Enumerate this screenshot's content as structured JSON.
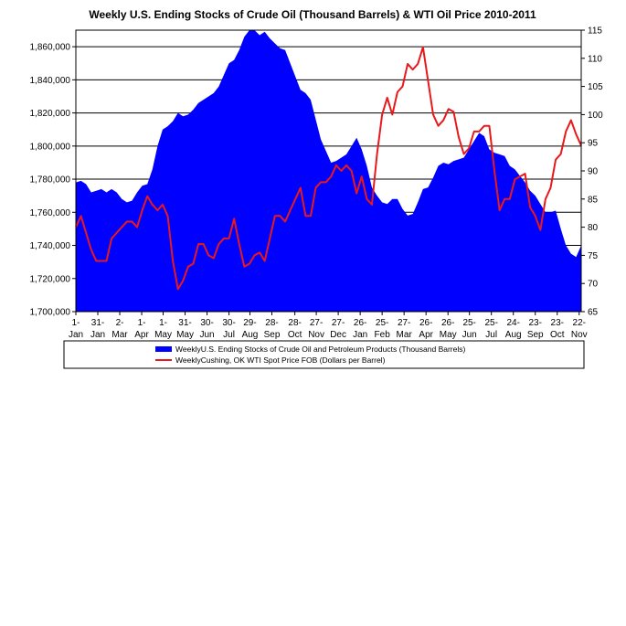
{
  "chart_data": {
    "type": "area",
    "title": "Weekly U.S. Ending Stocks of Crude Oil  (Thousand Barrels) & WTI Oil Price 2010-2011",
    "xlabel": "",
    "ylabel": "",
    "grid": "horizontal",
    "legend_position": "bottom",
    "y_left": {
      "range": [
        1700000,
        1870000
      ],
      "ticks": [
        "1,700,000",
        "1,720,000",
        "1,740,000",
        "1,760,000",
        "1,780,000",
        "1,800,000",
        "1,820,000",
        "1,840,000",
        "1,860,000"
      ],
      "tick_values": [
        1700000,
        1720000,
        1740000,
        1760000,
        1780000,
        1800000,
        1820000,
        1840000,
        1860000
      ]
    },
    "y_right": {
      "range": [
        65,
        115
      ],
      "ticks": [
        "65",
        "70",
        "75",
        "80",
        "85",
        "90",
        "95",
        "100",
        "105",
        "110",
        "115"
      ],
      "tick_values": [
        65,
        70,
        75,
        80,
        85,
        90,
        95,
        100,
        105,
        110,
        115
      ]
    },
    "x_ticks": [
      {
        "top": "1-",
        "bottom": "Jan",
        "week": 0
      },
      {
        "top": "31-",
        "bottom": "Jan",
        "week": 4.3
      },
      {
        "top": "2-",
        "bottom": "Mar",
        "week": 8.6
      },
      {
        "top": "1-",
        "bottom": "Apr",
        "week": 12.9
      },
      {
        "top": "1-",
        "bottom": "May",
        "week": 17.1
      },
      {
        "top": "31-",
        "bottom": "May",
        "week": 21.4
      },
      {
        "top": "30-",
        "bottom": "Jun",
        "week": 25.7
      },
      {
        "top": "30-",
        "bottom": "Jul",
        "week": 30.0
      },
      {
        "top": "29-",
        "bottom": "Aug",
        "week": 34.1
      },
      {
        "top": "28-",
        "bottom": "Sep",
        "week": 38.4
      },
      {
        "top": "28-",
        "bottom": "Oct",
        "week": 42.9
      },
      {
        "top": "27-",
        "bottom": "Nov",
        "week": 47.1
      },
      {
        "top": "27-",
        "bottom": "Dec",
        "week": 51.4
      },
      {
        "top": "26-",
        "bottom": "Jan",
        "week": 55.7
      },
      {
        "top": "25-",
        "bottom": "Feb",
        "week": 60.0
      },
      {
        "top": "27-",
        "bottom": "Mar",
        "week": 64.3
      },
      {
        "top": "26-",
        "bottom": "Apr",
        "week": 68.6
      },
      {
        "top": "26-",
        "bottom": "May",
        "week": 72.9
      },
      {
        "top": "25-",
        "bottom": "Jun",
        "week": 77.1
      },
      {
        "top": "25-",
        "bottom": "Jul",
        "week": 81.4
      },
      {
        "top": "24-",
        "bottom": "Aug",
        "week": 85.7
      },
      {
        "top": "23-",
        "bottom": "Sep",
        "week": 90.0
      },
      {
        "top": "23-",
        "bottom": "Oct",
        "week": 94.3
      },
      {
        "top": "22-",
        "bottom": "Nov",
        "week": 98.6
      }
    ],
    "x_range": [
      0,
      99
    ],
    "series": [
      {
        "name": "WeeklyU.S. Ending Stocks of Crude Oil and Petroleum Products  (Thousand Barrels)",
        "type": "area",
        "axis": "left",
        "color": "#0000ff",
        "x": [
          0,
          1,
          2,
          3,
          4,
          5,
          6,
          7,
          8,
          9,
          10,
          11,
          12,
          13,
          14,
          15,
          16,
          17,
          18,
          19,
          20,
          21,
          22,
          23,
          24,
          25,
          26,
          27,
          28,
          29,
          30,
          31,
          32,
          33,
          34,
          35,
          36,
          37,
          38,
          39,
          40,
          41,
          42,
          43,
          44,
          45,
          46,
          47,
          48,
          49,
          50,
          51,
          52,
          53,
          54,
          55,
          56,
          57,
          58,
          59,
          60,
          61,
          62,
          63,
          64,
          65,
          66,
          67,
          68,
          69,
          70,
          71,
          72,
          73,
          74,
          75,
          76,
          77,
          78,
          79,
          80,
          81,
          82,
          83,
          84,
          85,
          86,
          87,
          88,
          89,
          90,
          91,
          92,
          93,
          94,
          95,
          96,
          97,
          98,
          99
        ],
        "values": [
          1778000,
          1779000,
          1777000,
          1772000,
          1773000,
          1774000,
          1772000,
          1774000,
          1772000,
          1768000,
          1766000,
          1767000,
          1772000,
          1776000,
          1777000,
          1786000,
          1800000,
          1810000,
          1812000,
          1815000,
          1820000,
          1818000,
          1819000,
          1822000,
          1826000,
          1828000,
          1830000,
          1832000,
          1836000,
          1843000,
          1850000,
          1852000,
          1858000,
          1866000,
          1870000,
          1870000,
          1867000,
          1869000,
          1865000,
          1862000,
          1859000,
          1858000,
          1850000,
          1842000,
          1834000,
          1832000,
          1828000,
          1816000,
          1804000,
          1797000,
          1790000,
          1791000,
          1793000,
          1795000,
          1800000,
          1805000,
          1798000,
          1788000,
          1775000,
          1770000,
          1766000,
          1765000,
          1768000,
          1768000,
          1762000,
          1758000,
          1759000,
          1766000,
          1774000,
          1775000,
          1781000,
          1788000,
          1790000,
          1789000,
          1791000,
          1792000,
          1793000,
          1798000,
          1803000,
          1808000,
          1806000,
          1798000,
          1796000,
          1795000,
          1794000,
          1788000,
          1786000,
          1782000,
          1778000,
          1773000,
          1770000,
          1765000,
          1760000,
          1760000,
          1761000,
          1750000,
          1740000,
          1735000,
          1733000,
          1740000
        ]
      },
      {
        "name": "WeeklyCushing, OK WTI Spot Price FOB  (Dollars per Barrel)",
        "type": "line",
        "axis": "right",
        "color": "#e8191c",
        "x": [
          0,
          1,
          2,
          3,
          4,
          5,
          6,
          7,
          8,
          9,
          10,
          11,
          12,
          13,
          14,
          15,
          16,
          17,
          18,
          19,
          20,
          21,
          22,
          23,
          24,
          25,
          26,
          27,
          28,
          29,
          30,
          31,
          32,
          33,
          34,
          35,
          36,
          37,
          38,
          39,
          40,
          41,
          42,
          43,
          44,
          45,
          46,
          47,
          48,
          49,
          50,
          51,
          52,
          53,
          54,
          55,
          56,
          57,
          58,
          59,
          60,
          61,
          62,
          63,
          64,
          65,
          66,
          67,
          68,
          69,
          70,
          71,
          72,
          73,
          74,
          75,
          76,
          77,
          78,
          79,
          80,
          81,
          82,
          83,
          84,
          85,
          86,
          87,
          88,
          89,
          90,
          91,
          92,
          93,
          94,
          95,
          96,
          97,
          98,
          99
        ],
        "values": [
          80,
          82,
          79,
          76,
          74,
          74,
          74,
          78,
          79,
          80,
          81,
          81,
          80,
          83,
          85.5,
          84,
          83,
          84,
          82,
          74,
          69,
          70.5,
          73,
          73.5,
          77,
          77,
          75,
          74.5,
          77,
          78,
          78,
          81.5,
          77,
          73,
          73.5,
          75,
          75.5,
          74,
          78,
          82,
          82,
          81,
          83,
          85,
          87,
          82,
          82,
          87,
          88,
          88,
          89,
          91,
          90,
          91,
          90,
          86,
          89,
          85,
          84,
          93,
          100,
          103,
          100,
          104,
          105,
          109,
          108,
          109,
          112,
          106,
          100,
          98,
          99,
          101,
          100.5,
          96,
          93,
          94,
          97,
          97,
          98,
          98,
          90,
          83,
          85,
          85,
          88.5,
          89,
          89.5,
          83.5,
          82,
          79.5,
          85,
          87,
          92,
          93,
          97,
          99,
          96.5,
          94.5
        ]
      }
    ]
  },
  "legend": {
    "stocks_label": "WeeklyU.S. Ending Stocks of Crude Oil and Petroleum Products  (Thousand Barrels)",
    "price_label": "WeeklyCushing, OK WTI Spot Price FOB  (Dollars per Barrel)"
  }
}
